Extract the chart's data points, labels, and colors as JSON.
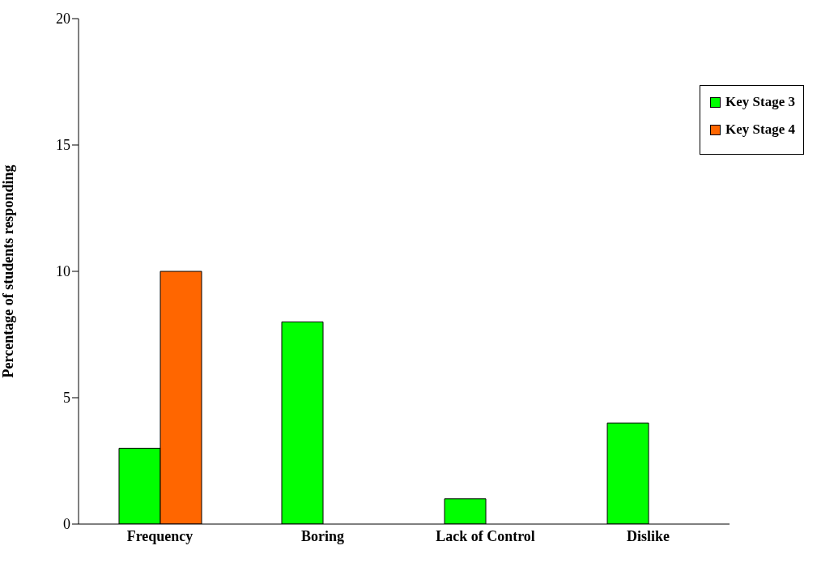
{
  "chart_data": {
    "type": "bar",
    "ylabel": "Percentage of students responding",
    "categories": [
      "Frequency",
      "Boring",
      "Lack of Control",
      "Dislike"
    ],
    "series": [
      {
        "name": "Key Stage 3",
        "color": "#00ff00",
        "values": [
          3,
          8,
          1,
          4
        ]
      },
      {
        "name": "Key Stage 4",
        "color": "#ff6600",
        "values": [
          10,
          0,
          0,
          0
        ]
      }
    ],
    "ylim": [
      0,
      20
    ],
    "yticks": [
      0,
      5,
      10,
      15,
      20
    ],
    "grid": false,
    "legend": "top right"
  }
}
